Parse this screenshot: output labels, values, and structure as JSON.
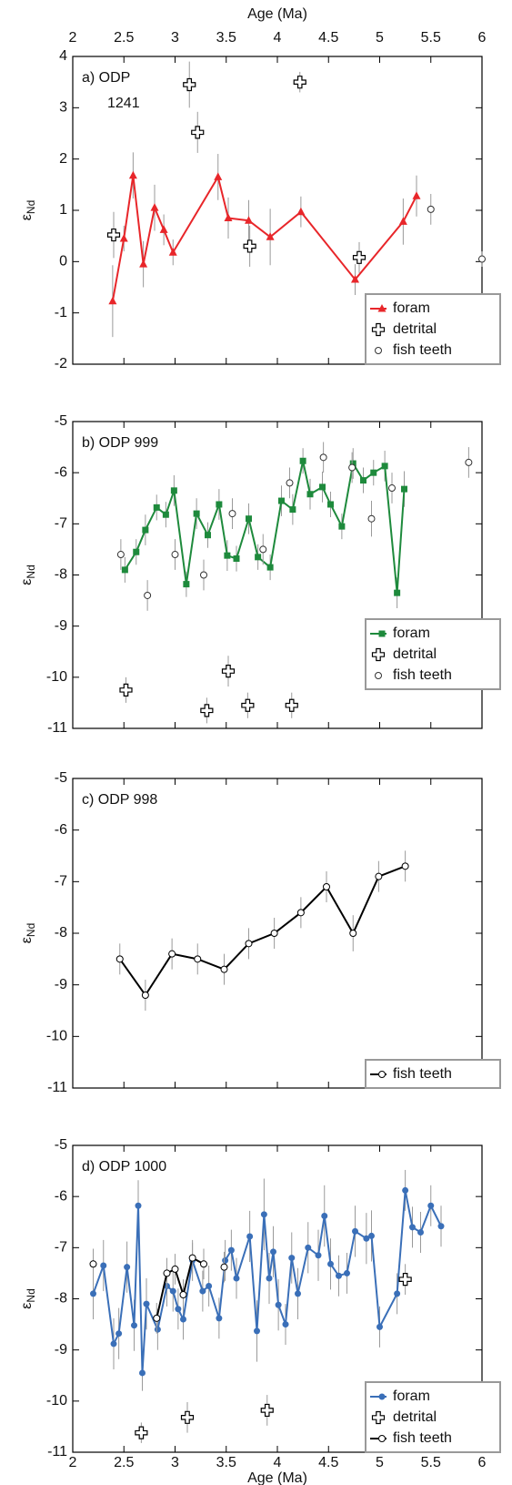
{
  "chart_data": [
    {
      "type": "scatter",
      "title": [
        "a) ODP",
        "1241"
      ],
      "x_label": "Age (Ma)",
      "xtick_labels": "top",
      "y_label": {
        "symbol": "ε",
        "subscript": "Nd"
      },
      "xlim": [
        2,
        6
      ],
      "xticks": [
        2,
        2.5,
        3,
        3.5,
        4,
        4.5,
        5,
        5.5,
        6
      ],
      "ylim": [
        -2,
        4
      ],
      "yticks": [
        -2,
        -1,
        0,
        1,
        2,
        3,
        4
      ],
      "legend": "lower right",
      "series": [
        {
          "name": "foram",
          "color": "#e8262a",
          "marker": "triangle",
          "line": true,
          "x": [
            2.39,
            2.5,
            2.59,
            2.69,
            2.8,
            2.89,
            2.98,
            3.42,
            3.52,
            3.72,
            3.93,
            4.23,
            4.76,
            5.23,
            5.36
          ],
          "values": [
            -0.77,
            0.45,
            1.68,
            -0.05,
            1.05,
            0.62,
            0.18,
            1.65,
            0.85,
            0.8,
            0.48,
            0.97,
            -0.35,
            0.78,
            1.28
          ],
          "errors": [
            0.7,
            0.25,
            0.45,
            0.45,
            0.45,
            0.3,
            0.25,
            0.45,
            0.4,
            0.4,
            0.55,
            0.3,
            0.3,
            0.45,
            0.4
          ]
        },
        {
          "name": "detrital",
          "color": "#000000",
          "marker": "cross",
          "line": false,
          "x": [
            2.4,
            3.14,
            3.22,
            3.73,
            4.22,
            4.8
          ],
          "values": [
            0.52,
            3.45,
            2.52,
            0.3,
            3.5,
            0.08
          ],
          "errors": [
            0.45,
            0.45,
            0.4,
            0.4,
            0.2,
            0.3
          ]
        },
        {
          "name": "fish teeth",
          "color": "#333333",
          "marker": "open-circle",
          "line": false,
          "x": [
            5.5,
            6.0
          ],
          "values": [
            1.02,
            0.05
          ],
          "errors": [
            0.3,
            0.15
          ]
        }
      ]
    },
    {
      "type": "scatter",
      "title": [
        "b) ODP 999"
      ],
      "y_label": {
        "symbol": "ε",
        "subscript": "Nd"
      },
      "xlim": [
        2,
        6
      ],
      "xticks": [
        2,
        2.5,
        3,
        3.5,
        4,
        4.5,
        5,
        5.5,
        6
      ],
      "ylim": [
        -11,
        -5
      ],
      "yticks": [
        -11,
        -10,
        -9,
        -8,
        -7,
        -6,
        -5
      ],
      "legend": "lower right",
      "series": [
        {
          "name": "foram",
          "color": "#1e8a3c",
          "marker": "square",
          "line": true,
          "x": [
            2.51,
            2.62,
            2.71,
            2.82,
            2.91,
            2.99,
            3.11,
            3.21,
            3.32,
            3.43,
            3.51,
            3.6,
            3.72,
            3.81,
            3.93,
            4.04,
            4.15,
            4.25,
            4.32,
            4.44,
            4.52,
            4.63,
            4.74,
            4.84,
            4.94,
            5.05,
            5.17,
            5.24
          ],
          "values": [
            -7.9,
            -7.55,
            -7.12,
            -6.68,
            -6.82,
            -6.35,
            -8.18,
            -6.8,
            -7.22,
            -6.62,
            -7.62,
            -7.68,
            -6.9,
            -7.65,
            -7.85,
            -6.55,
            -6.72,
            -5.77,
            -6.42,
            -6.28,
            -6.62,
            -7.05,
            -5.82,
            -6.15,
            -6.0,
            -5.87,
            -8.35,
            -6.32
          ],
          "errors": [
            0.25,
            0.25,
            0.3,
            0.25,
            0.25,
            0.3,
            0.25,
            0.3,
            0.25,
            0.3,
            0.3,
            0.25,
            0.3,
            0.25,
            0.25,
            0.3,
            0.3,
            0.25,
            0.3,
            0.3,
            0.25,
            0.25,
            0.3,
            0.25,
            0.25,
            0.3,
            0.3,
            0.35
          ]
        },
        {
          "name": "detrital",
          "color": "#000000",
          "marker": "cross",
          "line": false,
          "x": [
            2.52,
            3.31,
            3.52,
            3.71,
            4.14,
            4.93
          ],
          "values": [
            -10.25,
            -10.65,
            -9.88,
            -10.55,
            -10.55,
            -9.52
          ],
          "errors": [
            0.25,
            0.25,
            0.3,
            0.25,
            0.25,
            0.3
          ]
        },
        {
          "name": "fish teeth",
          "color": "#333333",
          "marker": "open-circle",
          "line": false,
          "x": [
            2.47,
            2.73,
            3.0,
            3.28,
            3.56,
            3.86,
            4.12,
            4.45,
            4.73,
            4.92,
            5.12,
            5.87
          ],
          "values": [
            -7.6,
            -8.4,
            -7.6,
            -8.0,
            -6.8,
            -7.5,
            -6.2,
            -5.7,
            -5.9,
            -6.9,
            -6.3,
            -5.8
          ],
          "errors": [
            0.3,
            0.3,
            0.3,
            0.3,
            0.3,
            0.3,
            0.3,
            0.3,
            0.3,
            0.35,
            0.3,
            0.3
          ]
        }
      ]
    },
    {
      "type": "scatter",
      "title": [
        "c) ODP 998"
      ],
      "y_label": {
        "symbol": "ε",
        "subscript": "Nd"
      },
      "xlim": [
        2,
        6
      ],
      "xticks": [
        2,
        2.5,
        3,
        3.5,
        4,
        4.5,
        5,
        5.5,
        6
      ],
      "ylim": [
        -11,
        -5
      ],
      "yticks": [
        -11,
        -10,
        -9,
        -8,
        -7,
        -6,
        -5
      ],
      "legend": "lower right",
      "series": [
        {
          "name": "fish teeth",
          "color": "#000000",
          "marker": "open-circle",
          "line": true,
          "x": [
            2.46,
            2.71,
            2.97,
            3.22,
            3.48,
            3.72,
            3.97,
            4.23,
            4.48,
            4.74,
            4.99,
            5.25
          ],
          "values": [
            -8.5,
            -9.2,
            -8.4,
            -8.5,
            -8.7,
            -8.2,
            -8.0,
            -7.6,
            -7.1,
            -8.0,
            -6.9,
            -6.7
          ],
          "errors": [
            0.3,
            0.3,
            0.3,
            0.3,
            0.3,
            0.3,
            0.3,
            0.3,
            0.3,
            0.35,
            0.3,
            0.3
          ]
        }
      ]
    },
    {
      "type": "scatter",
      "title": [
        "d) ODP 1000"
      ],
      "x_label": "Age (Ma)",
      "xtick_labels": "bottom",
      "y_label": {
        "symbol": "ε",
        "subscript": "Nd"
      },
      "xlim": [
        2,
        6
      ],
      "xticks": [
        2,
        2.5,
        3,
        3.5,
        4,
        4.5,
        5,
        5.5,
        6
      ],
      "ylim": [
        -11,
        -5
      ],
      "yticks": [
        -11,
        -10,
        -9,
        -8,
        -7,
        -6,
        -5
      ],
      "legend": "lower right",
      "series": [
        {
          "name": "foram",
          "color": "#3a6fb8",
          "marker": "circle",
          "line": true,
          "x": [
            2.2,
            2.3,
            2.4,
            2.45,
            2.53,
            2.6,
            2.64,
            2.68,
            2.72,
            2.83,
            2.92,
            2.98,
            3.03,
            3.08,
            3.17,
            3.27,
            3.33,
            3.43,
            3.49,
            3.55,
            3.6,
            3.73,
            3.8,
            3.87,
            3.92,
            3.96,
            4.01,
            4.08,
            4.14,
            4.2,
            4.3,
            4.4,
            4.46,
            4.52,
            4.6,
            4.68,
            4.76,
            4.87,
            4.92,
            5.0,
            5.17,
            5.25,
            5.32,
            5.4,
            5.5,
            5.6
          ],
          "values": [
            -7.9,
            -7.35,
            -8.88,
            -8.68,
            -7.38,
            -8.52,
            -6.18,
            -9.45,
            -8.1,
            -8.6,
            -7.75,
            -7.85,
            -8.2,
            -8.4,
            -7.25,
            -7.85,
            -7.75,
            -8.38,
            -7.25,
            -7.05,
            -7.6,
            -6.78,
            -8.63,
            -6.35,
            -7.6,
            -7.08,
            -8.12,
            -8.5,
            -7.2,
            -7.9,
            -7.0,
            -7.15,
            -6.38,
            -7.32,
            -7.55,
            -7.5,
            -6.68,
            -6.82,
            -6.77,
            -8.55,
            -7.9,
            -5.88,
            -6.6,
            -6.7,
            -6.18,
            -6.58
          ],
          "errors": [
            0.5,
            0.5,
            0.5,
            0.5,
            0.5,
            0.5,
            0.5,
            0.35,
            0.5,
            0.4,
            0.4,
            0.4,
            0.4,
            0.4,
            0.4,
            0.4,
            0.4,
            0.4,
            0.4,
            0.4,
            0.4,
            0.5,
            0.6,
            0.7,
            0.5,
            0.5,
            0.5,
            0.4,
            0.5,
            0.5,
            0.5,
            0.5,
            0.6,
            0.5,
            0.4,
            0.4,
            0.5,
            0.5,
            0.5,
            0.4,
            0.4,
            0.4,
            0.4,
            0.4,
            0.4,
            0.4
          ]
        },
        {
          "name": "detrital",
          "color": "#000000",
          "marker": "cross",
          "line": false,
          "x": [
            2.67,
            3.12,
            3.9,
            5.25
          ],
          "values": [
            -10.62,
            -10.32,
            -10.18,
            -7.62
          ],
          "errors": [
            0.2,
            0.3,
            0.3,
            0.3
          ]
        },
        {
          "name": "fish teeth",
          "color": "#000000",
          "marker": "open-circle",
          "line": true,
          "x": [
            2.2,
            2.5,
            2.82,
            2.92,
            3.0,
            3.08,
            3.17,
            3.28,
            3.38,
            3.48
          ],
          "values": [
            -7.32,
            null,
            -8.38,
            -7.5,
            -7.42,
            -7.92,
            -7.2,
            -7.32,
            null,
            -7.38
          ],
          "errors": [
            0.3,
            null,
            0.3,
            0.3,
            0.3,
            0.3,
            0.3,
            0.3,
            null,
            0.3
          ]
        }
      ]
    }
  ]
}
